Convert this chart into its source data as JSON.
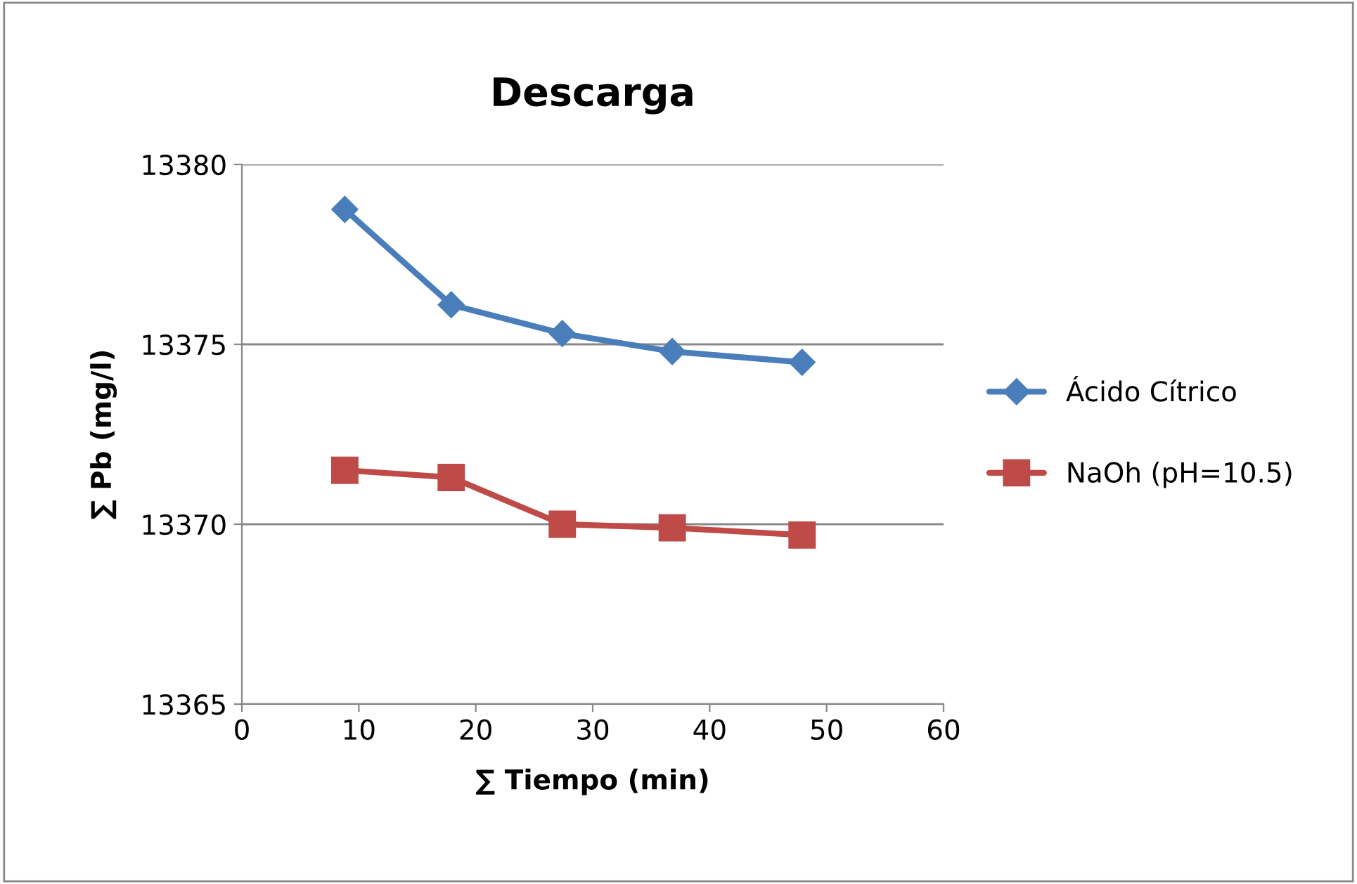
{
  "chart_data": {
    "type": "line",
    "title": "Descarga",
    "xlabel": "∑ Tiempo (min)",
    "ylabel": "∑ Pb (mg/l)",
    "xlim": [
      0,
      60
    ],
    "xticks": [
      0,
      10,
      20,
      30,
      40,
      50,
      60
    ],
    "ylim": [
      13365,
      13380
    ],
    "yticks": [
      13365,
      13370,
      13375,
      13380
    ],
    "grid": "y",
    "legend": "right",
    "line_style": "solid",
    "series": [
      {
        "name": "Ácido Cítrico",
        "color": "#4a7ebb",
        "marker": "diamond",
        "x": [
          8.8,
          17.9,
          27.4,
          36.8,
          47.9
        ],
        "values": [
          13378.75,
          13376.1,
          13375.3,
          13374.8,
          13374.5
        ]
      },
      {
        "name": "NaOh (pH=10.5)",
        "color": "#be4b48",
        "marker": "square",
        "x": [
          8.8,
          17.9,
          27.4,
          36.8,
          47.9
        ],
        "values": [
          13371.5,
          13371.3,
          13370.0,
          13369.9,
          13369.7
        ]
      }
    ]
  }
}
